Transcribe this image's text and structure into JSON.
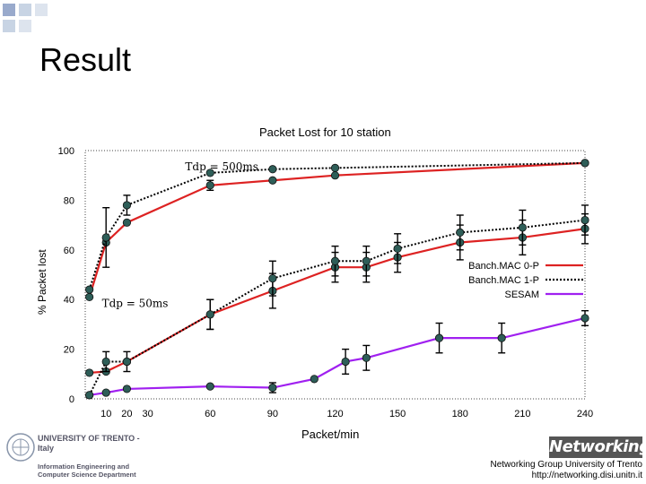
{
  "slide": {
    "title": "Result",
    "footer_line1": "Networking Group University of Trento",
    "footer_line2": "http://networking.disi.unitn.it",
    "logo_text": "Networking",
    "university_name": "UNIVERSITY OF TRENTO - Italy",
    "department": "Information Engineering and Computer Science Department"
  },
  "chart_data": {
    "type": "line",
    "title": "Packet Lost for 10 station",
    "xlabel": "Packet/min",
    "ylabel": "% Packet lost",
    "xlim": [
      0,
      240
    ],
    "ylim": [
      0,
      100
    ],
    "x_ticks": [
      10,
      20,
      30,
      60,
      90,
      120,
      150,
      180,
      210,
      240
    ],
    "y_ticks": [
      0,
      20,
      40,
      60,
      80,
      100
    ],
    "legend_position": "right",
    "colors": {
      "red": "#dd2222",
      "black": "#000000",
      "purple": "#a020f0",
      "marker": "#2e5e58"
    },
    "annotations": [
      "Tdp = 500ms",
      "Tdp = 50ms"
    ],
    "series": [
      {
        "name": "Banch.MAC 0-P",
        "group": "Tdp = 500ms",
        "style": "solid",
        "color": "red",
        "x": [
          2,
          10,
          20,
          60,
          90,
          120,
          240
        ],
        "y": [
          41,
          63,
          71,
          86,
          88,
          90,
          95
        ],
        "err": [
          0,
          0,
          0,
          2,
          0,
          0,
          0
        ]
      },
      {
        "name": "Banch.MAC 1-P",
        "group": "Tdp = 500ms",
        "style": "dotted",
        "color": "black",
        "x": [
          2,
          10,
          20,
          60,
          90,
          120,
          240
        ],
        "y": [
          44,
          65,
          78,
          91,
          92.5,
          93,
          95
        ],
        "err": [
          0,
          12,
          4,
          0,
          0,
          0,
          0
        ]
      },
      {
        "name": "Banch.MAC 0-P",
        "group": "Tdp = 50ms",
        "style": "solid",
        "color": "red",
        "x": [
          2,
          10,
          20,
          60,
          90,
          120,
          135,
          150,
          180,
          210,
          240
        ],
        "y": [
          10.5,
          11,
          15,
          34,
          43.5,
          53,
          53,
          57,
          63,
          65,
          68.5
        ],
        "err": [
          0,
          0,
          0,
          6,
          7,
          6,
          6,
          6,
          7,
          7,
          6
        ]
      },
      {
        "name": "Banch.MAC 1-P",
        "group": "Tdp = 50ms",
        "style": "dotted",
        "color": "black",
        "x": [
          2,
          10,
          20,
          60,
          90,
          120,
          135,
          150,
          180,
          210,
          240
        ],
        "y": [
          1.5,
          15,
          15,
          34,
          48.5,
          55.5,
          55.5,
          60.5,
          67,
          69,
          72
        ],
        "err": [
          0,
          4,
          4,
          6,
          7,
          6,
          6,
          6,
          7,
          7,
          6
        ]
      },
      {
        "name": "SESAM",
        "group": "Tdp = 50ms",
        "style": "solid",
        "color": "purple",
        "x": [
          2,
          10,
          20,
          60,
          90,
          110,
          125,
          135,
          170,
          200,
          240
        ],
        "y": [
          1.5,
          2.5,
          4,
          5,
          4.5,
          8,
          15,
          16.5,
          24.5,
          24.5,
          32.5
        ],
        "err": [
          0,
          0,
          0,
          0,
          2,
          0,
          5,
          5,
          6,
          6,
          3
        ]
      }
    ]
  }
}
